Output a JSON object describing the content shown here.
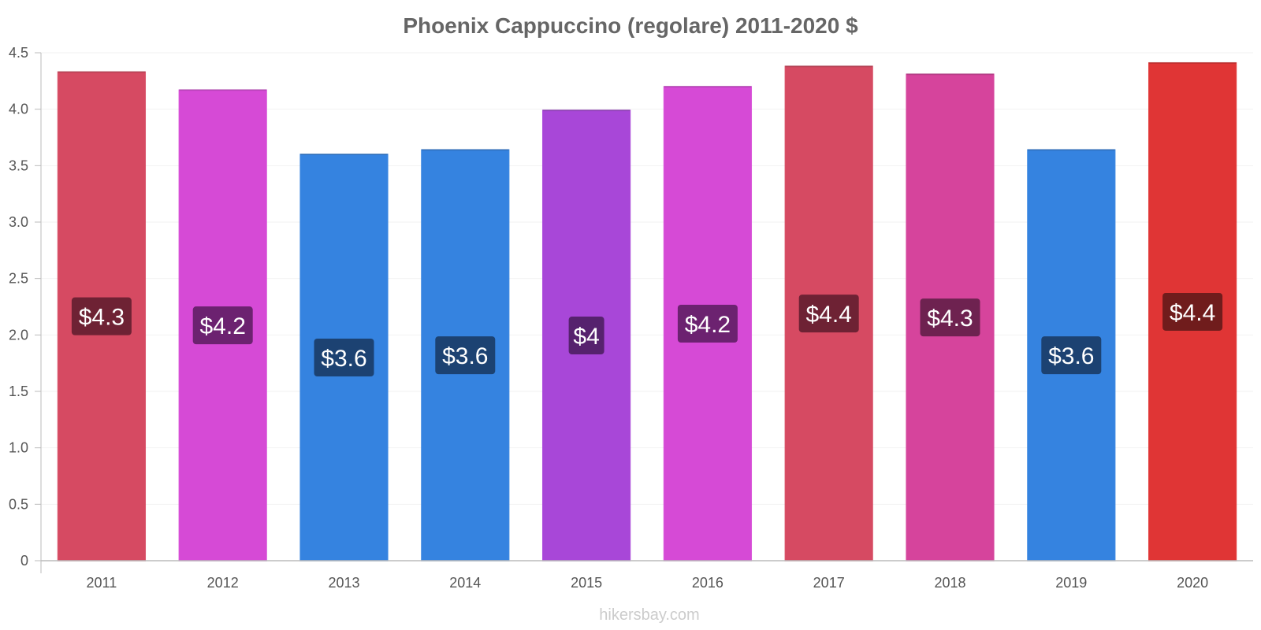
{
  "chart_data": {
    "type": "bar",
    "title": "Phoenix Cappuccino (regolare) 2011-2020 $",
    "categories": [
      "2011",
      "2012",
      "2013",
      "2014",
      "2015",
      "2016",
      "2017",
      "2018",
      "2019",
      "2020"
    ],
    "values": [
      4.33,
      4.17,
      3.6,
      3.64,
      3.99,
      4.2,
      4.38,
      4.31,
      3.64,
      4.41
    ],
    "data_labels": [
      "$4.3",
      "$4.2",
      "$3.6",
      "$3.6",
      "$4",
      "$4.2",
      "$4.4",
      "$4.3",
      "$3.6",
      "$4.4"
    ],
    "bar_colors": [
      "#d64a62",
      "#d64ad6",
      "#3583e0",
      "#3583e0",
      "#a847d8",
      "#d64ad6",
      "#d64a62",
      "#d6449c",
      "#3583e0",
      "#e03535"
    ],
    "label_bg_colors": [
      "#6e2234",
      "#6c2270",
      "#1c4272",
      "#1c4272",
      "#56226e",
      "#6c2270",
      "#6e2234",
      "#6e2250",
      "#1c4272",
      "#701c1c"
    ],
    "ylim": [
      0,
      4.5
    ],
    "yticks": [
      "0",
      "0.5",
      "1.0",
      "1.5",
      "2.0",
      "2.5",
      "3.0",
      "3.5",
      "4.0",
      "4.5"
    ],
    "grid": true,
    "legend": "none"
  },
  "footer": "hikersbay.com"
}
